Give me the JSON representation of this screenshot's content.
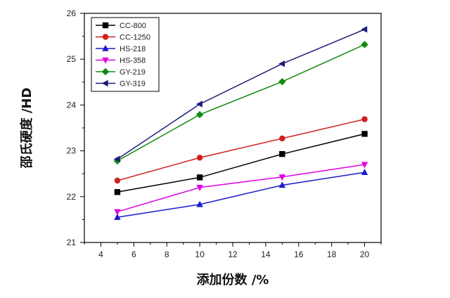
{
  "chart_data": {
    "type": "line",
    "xlabel": "添加份数 /%",
    "ylabel": "邵氏硬度 /HD",
    "xlim": [
      3,
      21
    ],
    "ylim": [
      21,
      26
    ],
    "xticks": [
      4,
      6,
      8,
      10,
      12,
      14,
      16,
      18,
      20
    ],
    "yticks": [
      21,
      22,
      23,
      24,
      25,
      26
    ],
    "grid": false,
    "legend_position": "top-left",
    "x": [
      5,
      10,
      15,
      20
    ],
    "series": [
      {
        "name": "CC-800",
        "color": "#000000",
        "marker": "square",
        "values": [
          22.1,
          22.42,
          22.93,
          23.37
        ]
      },
      {
        "name": "CC-1250",
        "color": "#d11f1f",
        "marker": "circle",
        "values": [
          22.35,
          22.85,
          23.27,
          23.69
        ]
      },
      {
        "name": "HS-218",
        "color": "#1a1acc",
        "marker": "triangle-up",
        "values": [
          21.55,
          21.83,
          22.25,
          22.53
        ]
      },
      {
        "name": "HS-358",
        "color": "#e000e0",
        "marker": "triangle-down",
        "values": [
          21.67,
          22.2,
          22.43,
          22.7
        ]
      },
      {
        "name": "GY-219",
        "color": "#118a11",
        "marker": "diamond",
        "values": [
          22.78,
          23.79,
          24.51,
          25.32
        ]
      },
      {
        "name": "GY-319",
        "color": "#1c1c78",
        "marker": "triangle-left",
        "values": [
          22.82,
          24.02,
          24.9,
          25.65
        ]
      }
    ]
  }
}
